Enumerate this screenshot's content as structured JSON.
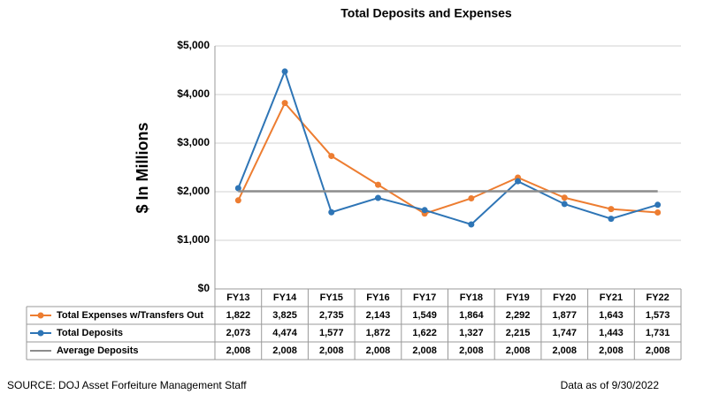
{
  "chart_data": {
    "type": "line",
    "title": "Total Deposits and Expenses",
    "y_label": "$ In Millions",
    "categories": [
      "FY13",
      "FY14",
      "FY15",
      "FY16",
      "FY17",
      "FY18",
      "FY19",
      "FY20",
      "FY21",
      "FY22"
    ],
    "series": [
      {
        "name": "Total Expenses w/Transfers Out",
        "color": "#ed7d31",
        "markers": true,
        "values": [
          1822,
          3825,
          2735,
          2143,
          1549,
          1864,
          2292,
          1877,
          1643,
          1573
        ],
        "value_labels": [
          "1,822",
          "3,825",
          "2,735",
          "2,143",
          "1,549",
          "1,864",
          "2,292",
          "1,877",
          "1,643",
          "1,573"
        ]
      },
      {
        "name": "Total Deposits",
        "color": "#2e75b6",
        "markers": true,
        "values": [
          2073,
          4474,
          1577,
          1872,
          1622,
          1327,
          2215,
          1747,
          1443,
          1731
        ],
        "value_labels": [
          "2,073",
          "4,474",
          "1,577",
          "1,872",
          "1,622",
          "1,327",
          "2,215",
          "1,747",
          "1,443",
          "1,731"
        ]
      },
      {
        "name": "Average Deposits",
        "color": "#8c8c8c",
        "markers": false,
        "values": [
          2008,
          2008,
          2008,
          2008,
          2008,
          2008,
          2008,
          2008,
          2008,
          2008
        ],
        "value_labels": [
          "2,008",
          "2,008",
          "2,008",
          "2,008",
          "2,008",
          "2,008",
          "2,008",
          "2,008",
          "2,008",
          "2,008"
        ]
      }
    ],
    "ylim": [
      0,
      5000
    ],
    "yticks": [
      {
        "value": 0,
        "label": "$0"
      },
      {
        "value": 1000,
        "label": "$1,000"
      },
      {
        "value": 2000,
        "label": "$2,000"
      },
      {
        "value": 3000,
        "label": "$3,000"
      },
      {
        "value": 4000,
        "label": "$4,000"
      },
      {
        "value": 5000,
        "label": "$5,000"
      }
    ],
    "grid": true,
    "source": "SOURCE: DOJ Asset Forfeiture Management Staff",
    "date_note": "Data as of 9/30/2022"
  }
}
